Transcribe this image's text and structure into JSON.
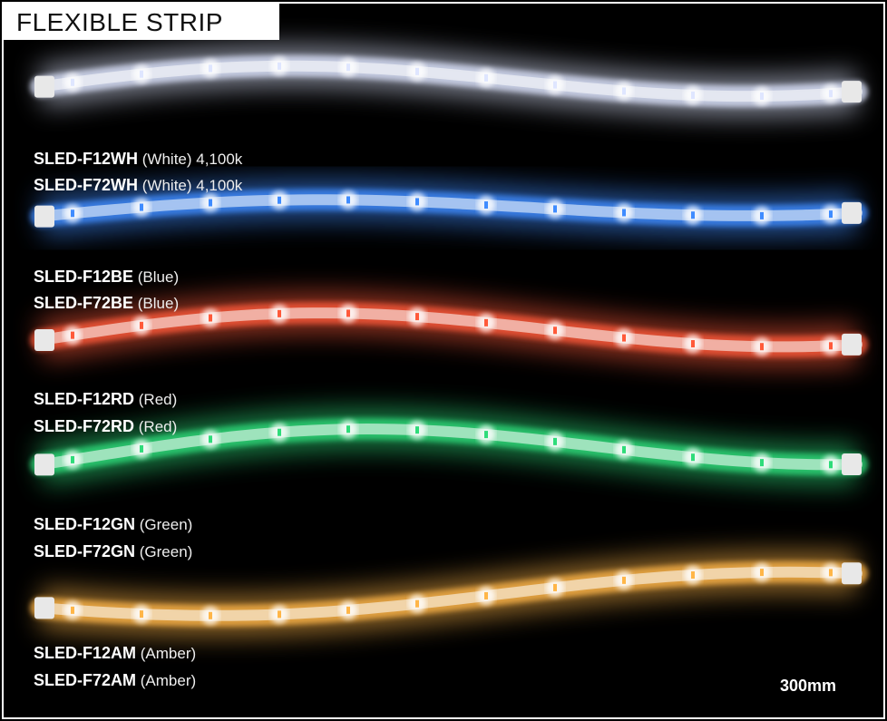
{
  "header": {
    "title": "FLEXIBLE STRIP"
  },
  "strips": [
    {
      "color": "#dfe6ff",
      "models": [
        {
          "code": "SLED-F12WH",
          "desc": "(White) 4,100k"
        },
        {
          "code": "SLED-F72WH",
          "desc": "(White) 4,100k"
        }
      ]
    },
    {
      "color": "#3f8cff",
      "models": [
        {
          "code": "SLED-F12BE",
          "desc": "(Blue)"
        },
        {
          "code": "SLED-F72BE",
          "desc": "(Blue)"
        }
      ]
    },
    {
      "color": "#ff5a3a",
      "models": [
        {
          "code": "SLED-F12RD",
          "desc": "(Red)"
        },
        {
          "code": "SLED-F72RD",
          "desc": "(Red)"
        }
      ]
    },
    {
      "color": "#2fdc7a",
      "models": [
        {
          "code": "SLED-F12GN",
          "desc": "(Green)"
        },
        {
          "code": "SLED-F72GN",
          "desc": "(Green)"
        }
      ]
    },
    {
      "color": "#ffb648",
      "models": [
        {
          "code": "SLED-F12AM",
          "desc": "(Amber)"
        },
        {
          "code": "SLED-F72AM",
          "desc": "(Amber)"
        }
      ]
    }
  ],
  "scale_label": "300mm"
}
